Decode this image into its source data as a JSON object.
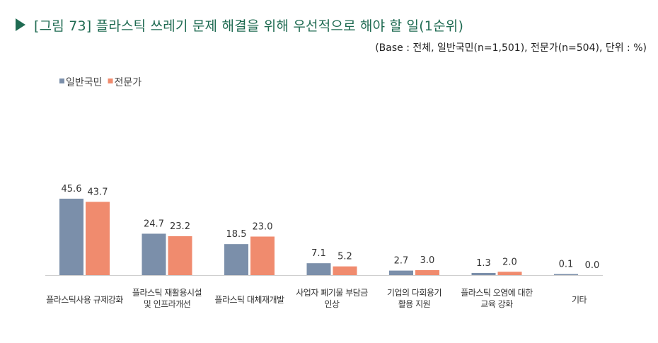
{
  "title": "[그림 73] 플라스틱 쓰레기 문제 해결을 위해 우선적으로 해야 할 일(1순위)",
  "subtitle": "(Base : 전체, 일반국민(n=1,501), 전문가(n=504), 단위 : %)",
  "colors": {
    "series1": "#7b8faa",
    "series2": "#f08b6e",
    "accent": "#1f6b52"
  },
  "chart_data": {
    "type": "bar",
    "categories": [
      [
        "플라스틱사용 규제강화"
      ],
      [
        "플라스틱 재활용시설",
        "및 인프라개선"
      ],
      [
        "플라스틱 대체재개발"
      ],
      [
        "사업자 폐기물 부담금",
        "인상"
      ],
      [
        "기업의 다회용기",
        "활용 지원"
      ],
      [
        "플라스틱 오염에 대한",
        "교육 강화"
      ],
      [
        "기타"
      ]
    ],
    "series": [
      {
        "name": "일반국민",
        "values": [
          45.6,
          24.7,
          18.5,
          7.1,
          2.7,
          1.3,
          0.1
        ]
      },
      {
        "name": "전문가",
        "values": [
          43.7,
          23.2,
          23.0,
          5.2,
          3.0,
          2.0,
          0.0
        ]
      }
    ],
    "value_labels": [
      [
        "45.6",
        "24.7",
        "18.5",
        "7.1",
        "2.7",
        "1.3",
        "0.1"
      ],
      [
        "43.7",
        "23.2",
        "23.0",
        "5.2",
        "3.0",
        "2.0",
        "0.0"
      ]
    ],
    "legend_position": "top-left",
    "grid": false
  }
}
